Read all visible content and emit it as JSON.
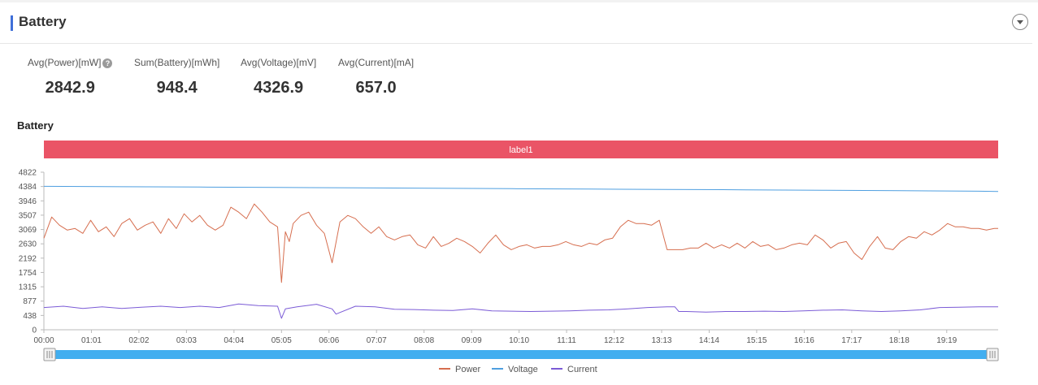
{
  "header": {
    "title": "Battery"
  },
  "metrics": [
    {
      "label": "Avg(Power)[mW]",
      "value": "2842.9",
      "has_help": true
    },
    {
      "label": "Sum(Battery)[mWh]",
      "value": "948.4"
    },
    {
      "label": "Avg(Voltage)[mV]",
      "value": "4326.9"
    },
    {
      "label": "Avg(Current)[mA]",
      "value": "657.0"
    }
  ],
  "help_glyph": "?",
  "chart_data": {
    "type": "line",
    "title": "Battery",
    "band_label": "label1",
    "colors": {
      "band": "#ea5466",
      "Power": "#d66e4f",
      "Voltage": "#4f9fe0",
      "Current": "#7b5bd6",
      "slider": "#41aef0"
    },
    "y_ticks": [
      "0",
      "438",
      "877",
      "1315",
      "1754",
      "2192",
      "2630",
      "3069",
      "3507",
      "3946",
      "4384",
      "4822"
    ],
    "ylim": [
      0,
      4822
    ],
    "x_ticks": [
      "00:00",
      "01:01",
      "02:02",
      "03:03",
      "04:04",
      "05:05",
      "06:06",
      "07:07",
      "08:08",
      "09:09",
      "10:10",
      "11:11",
      "12:12",
      "13:13",
      "14:14",
      "15:15",
      "16:16",
      "17:17",
      "18:18",
      "19:19"
    ],
    "x_range_minutes": [
      0,
      1225
    ],
    "legend_position": "bottom-center",
    "series": [
      {
        "name": "Power",
        "x": [
          0,
          10,
          20,
          30,
          40,
          50,
          60,
          70,
          80,
          90,
          100,
          110,
          120,
          130,
          140,
          150,
          160,
          170,
          180,
          190,
          200,
          210,
          220,
          230,
          240,
          250,
          260,
          270,
          280,
          290,
          300,
          305,
          310,
          315,
          320,
          330,
          340,
          350,
          360,
          370,
          380,
          390,
          400,
          410,
          420,
          430,
          440,
          450,
          460,
          470,
          480,
          490,
          500,
          510,
          520,
          530,
          540,
          550,
          560,
          570,
          580,
          590,
          600,
          610,
          620,
          630,
          640,
          650,
          660,
          670,
          680,
          690,
          700,
          710,
          720,
          730,
          740,
          750,
          760,
          770,
          780,
          790,
          800,
          810,
          820,
          830,
          840,
          850,
          860,
          870,
          880,
          890,
          900,
          910,
          920,
          930,
          940,
          950,
          960,
          970,
          980,
          990,
          1000,
          1010,
          1020,
          1030,
          1040,
          1050,
          1060,
          1070,
          1080,
          1090,
          1100,
          1110,
          1120,
          1130,
          1140,
          1150,
          1160,
          1170,
          1180,
          1190,
          1200,
          1210,
          1220,
          1225
        ],
        "values": [
          2800,
          3450,
          3200,
          3050,
          3100,
          2950,
          3350,
          3000,
          3150,
          2850,
          3250,
          3400,
          3050,
          3200,
          3300,
          2950,
          3400,
          3100,
          3550,
          3300,
          3500,
          3200,
          3050,
          3200,
          3750,
          3600,
          3400,
          3850,
          3600,
          3300,
          3150,
          1450,
          3000,
          2700,
          3250,
          3500,
          3600,
          3200,
          2950,
          2050,
          3300,
          3500,
          3400,
          3150,
          2950,
          3150,
          2850,
          2750,
          2850,
          2900,
          2600,
          2500,
          2850,
          2550,
          2650,
          2800,
          2700,
          2550,
          2350,
          2650,
          2900,
          2600,
          2450,
          2550,
          2600,
          2500,
          2550,
          2550,
          2600,
          2700,
          2600,
          2550,
          2650,
          2600,
          2750,
          2800,
          3150,
          3350,
          3250,
          3250,
          3200,
          3350,
          2450,
          2450,
          2450,
          2500,
          2500,
          2650,
          2500,
          2600,
          2500,
          2650,
          2500,
          2700,
          2550,
          2600,
          2450,
          2500,
          2600,
          2650,
          2600,
          2900,
          2750,
          2500,
          2650,
          2700,
          2350,
          2150,
          2550,
          2850,
          2500,
          2450,
          2700,
          2850,
          2800,
          3000,
          2900,
          3050,
          3250,
          3150,
          3150,
          3100,
          3100,
          3050,
          3100,
          3100
        ]
      },
      {
        "name": "Voltage",
        "x": [
          0,
          100,
          200,
          300,
          400,
          500,
          600,
          700,
          800,
          900,
          1000,
          1100,
          1200,
          1225
        ],
        "values": [
          4390,
          4378,
          4366,
          4354,
          4342,
          4330,
          4318,
          4306,
          4294,
          4282,
          4270,
          4258,
          4240,
          4230
        ]
      },
      {
        "name": "Current",
        "x": [
          0,
          25,
          50,
          75,
          100,
          125,
          150,
          175,
          200,
          225,
          250,
          275,
          300,
          305,
          310,
          325,
          350,
          370,
          375,
          400,
          425,
          450,
          475,
          500,
          525,
          550,
          575,
          600,
          625,
          650,
          675,
          700,
          725,
          750,
          775,
          800,
          810,
          815,
          825,
          850,
          875,
          900,
          925,
          950,
          975,
          1000,
          1025,
          1050,
          1075,
          1100,
          1125,
          1150,
          1175,
          1200,
          1225
        ],
        "values": [
          680,
          720,
          650,
          700,
          650,
          690,
          720,
          680,
          720,
          680,
          790,
          740,
          720,
          350,
          640,
          700,
          780,
          640,
          480,
          720,
          700,
          630,
          620,
          600,
          590,
          640,
          580,
          570,
          560,
          570,
          580,
          600,
          610,
          640,
          680,
          700,
          700,
          560,
          560,
          540,
          560,
          560,
          570,
          560,
          580,
          600,
          610,
          580,
          560,
          580,
          610,
          680,
          690,
          700,
          700
        ]
      }
    ]
  }
}
